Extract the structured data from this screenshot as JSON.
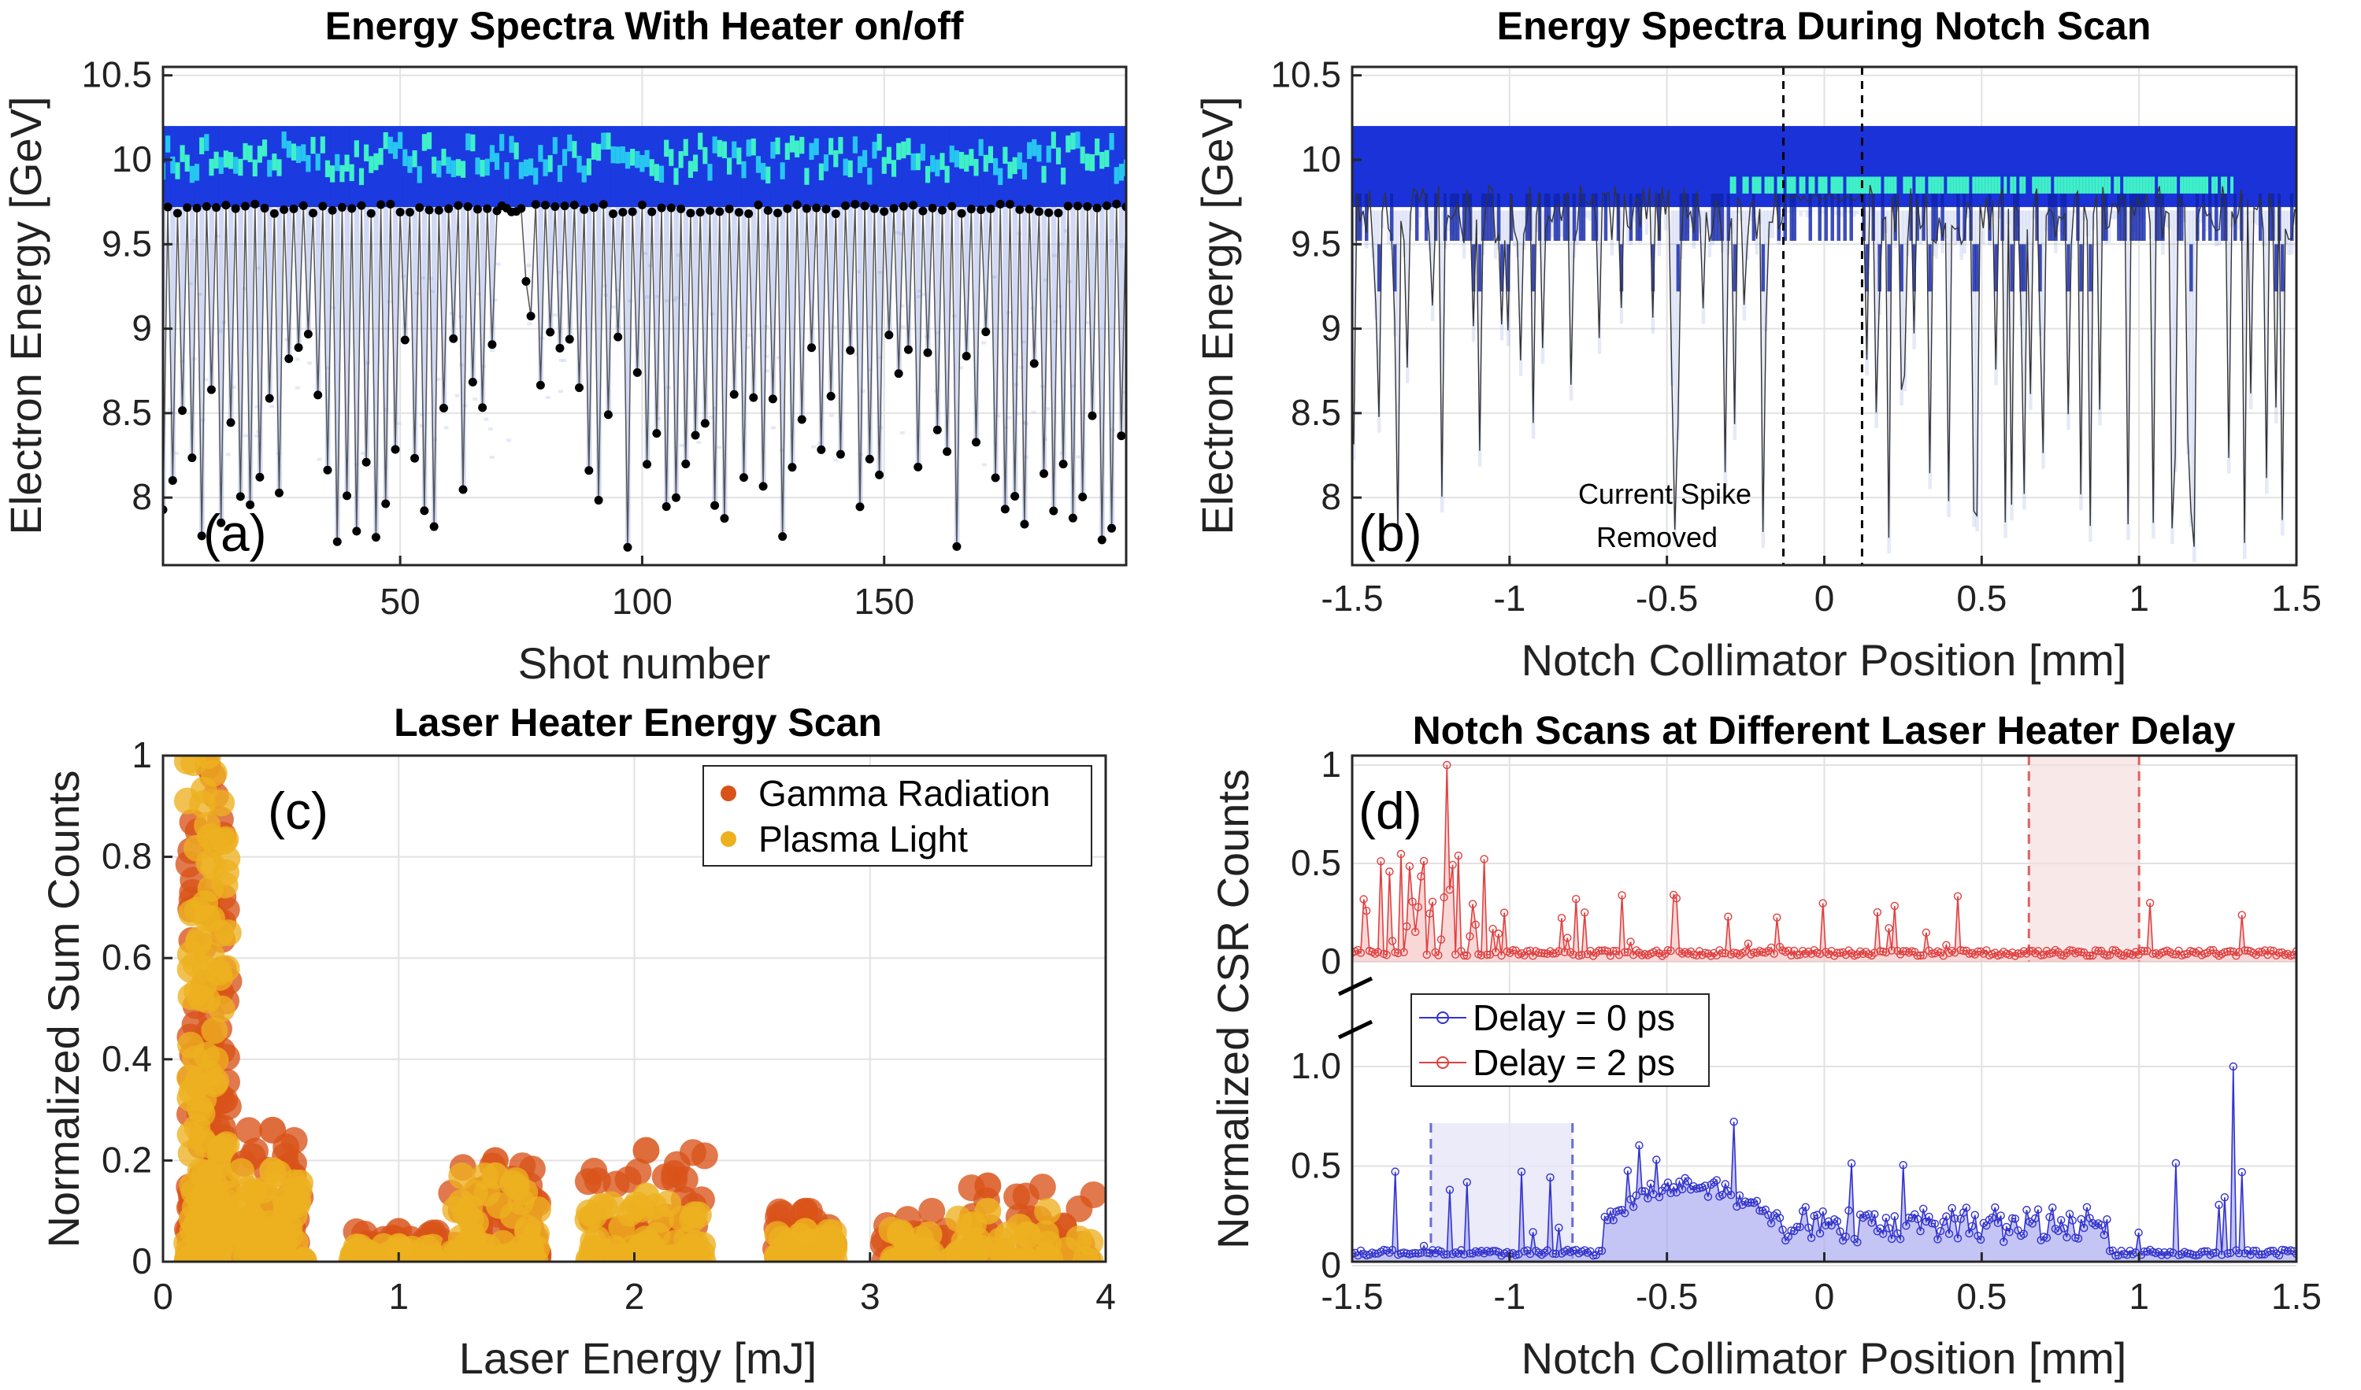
{
  "chart_data": [
    {
      "id": "a",
      "type": "heatmap",
      "title": "Energy Spectra With Heater on/off",
      "panel_label": "(a)",
      "xlabel": "Shot number",
      "ylabel": "Electron Energy [GeV]",
      "xlim": [
        1,
        200
      ],
      "ylim": [
        7.6,
        10.55
      ],
      "xticks": [
        50,
        100,
        150
      ],
      "yticks": [
        8,
        8.5,
        9,
        9.5,
        10,
        10.5
      ],
      "ytick_labels": [
        "8",
        "8.5",
        "9",
        "9.5",
        "10",
        "10.5"
      ],
      "band_energy_range": [
        9.75,
        10.2
      ],
      "spectrum_floor_heater_on_approx": 9.72,
      "spectrum_floor_heater_off_range": [
        7.7,
        9.0
      ],
      "pattern": "heater alternately on/off; floor about 9.7 GeV with heater on, drops to 7.6 - 9.0 GeV with heater off"
    },
    {
      "id": "b",
      "type": "heatmap",
      "title": "Energy Spectra During Notch Scan",
      "panel_label": "(b)",
      "xlabel": "Notch Collimator Position [mm]",
      "ylabel": "Electron Energy [GeV]",
      "xlim": [
        -1.5,
        1.5
      ],
      "ylim": [
        7.6,
        10.55
      ],
      "xticks": [
        -1.5,
        -1,
        -0.5,
        0,
        0.5,
        1,
        1.5
      ],
      "xtick_labels": [
        "-1.5",
        "-1",
        "-0.5",
        "0",
        "0.5",
        "1",
        "1.5"
      ],
      "yticks": [
        8,
        8.5,
        9,
        9.5,
        10,
        10.5
      ],
      "ytick_labels": [
        "8",
        "8.5",
        "9",
        "9.5",
        "10",
        "10.5"
      ],
      "dashed_lines_x": [
        -0.13,
        0.12
      ],
      "annotation_lines": [
        "Current Spike",
        "Removed"
      ],
      "band_energy_range": [
        9.7,
        10.2
      ]
    },
    {
      "id": "c",
      "type": "scatter",
      "title": "Laser Heater Energy Scan",
      "panel_label": "(c)",
      "xlabel": "Laser Energy [mJ]",
      "ylabel": "Normalized Sum Counts",
      "xlim": [
        0,
        4
      ],
      "ylim": [
        0,
        1
      ],
      "xticks": [
        0,
        1,
        2,
        3,
        4
      ],
      "yticks": [
        0,
        0.2,
        0.4,
        0.6,
        0.8,
        1
      ],
      "ytick_labels": [
        "0",
        "0.2",
        "0.4",
        "0.6",
        "0.8",
        "1"
      ],
      "series": [
        {
          "name": "Gamma Radiation",
          "color": "#D95319"
        },
        {
          "name": "Plasma Light",
          "color": "#EDB120"
        }
      ],
      "clusters": [
        {
          "x_range": [
            0.1,
            0.28
          ],
          "gamma_max": 0.98,
          "plasma_max": 1.0
        },
        {
          "x_range": [
            0.33,
            0.6
          ],
          "gamma_max": 0.26,
          "plasma_max": 0.18
        },
        {
          "x_range": [
            0.8,
            1.2
          ],
          "gamma_max": 0.06,
          "plasma_max": 0.03
        },
        {
          "x_range": [
            1.22,
            1.6
          ],
          "gamma_max": 0.2,
          "plasma_max": 0.17
        },
        {
          "x_range": [
            1.8,
            2.3
          ],
          "gamma_max": 0.22,
          "plasma_max": 0.13
        },
        {
          "x_range": [
            2.6,
            2.85
          ],
          "gamma_max": 0.1,
          "plasma_max": 0.06
        },
        {
          "x_range": [
            3.05,
            3.95
          ],
          "gamma_max": 0.15,
          "plasma_max": 0.1
        }
      ]
    },
    {
      "id": "d",
      "type": "line",
      "title": "Notch Scans at Different Laser Heater Delay",
      "panel_label": "(d)",
      "xlabel": "Notch Collimator Position [mm]",
      "ylabel": "Normalized CSR Counts",
      "xlim": [
        -1.5,
        1.5
      ],
      "xticks": [
        -1.5,
        -1,
        -0.5,
        0,
        0.5,
        1,
        1.5
      ],
      "xtick_labels": [
        "-1.5",
        "-1",
        "-0.5",
        "0",
        "0.5",
        "1",
        "1.5"
      ],
      "upper_yticks": [
        0,
        0.5,
        1
      ],
      "upper_ytick_labels": [
        "0",
        "0.5",
        "1"
      ],
      "lower_yticks": [
        0,
        0.5,
        1.0
      ],
      "lower_ytick_labels": [
        "0",
        "0.5",
        "1.0"
      ],
      "series": [
        {
          "name": "Delay = 0 ps",
          "color": "#3333CC",
          "shaded_region": [
            -1.25,
            -0.8
          ],
          "baseline": 0.05,
          "peak": 1.0,
          "peak_x": 1.3
        },
        {
          "name": "Delay = 2 ps",
          "color": "#E04040",
          "shaded_region": [
            0.65,
            1.0
          ],
          "baseline": 0.03,
          "peak": 1.0,
          "peak_x": -1.2
        }
      ]
    }
  ]
}
